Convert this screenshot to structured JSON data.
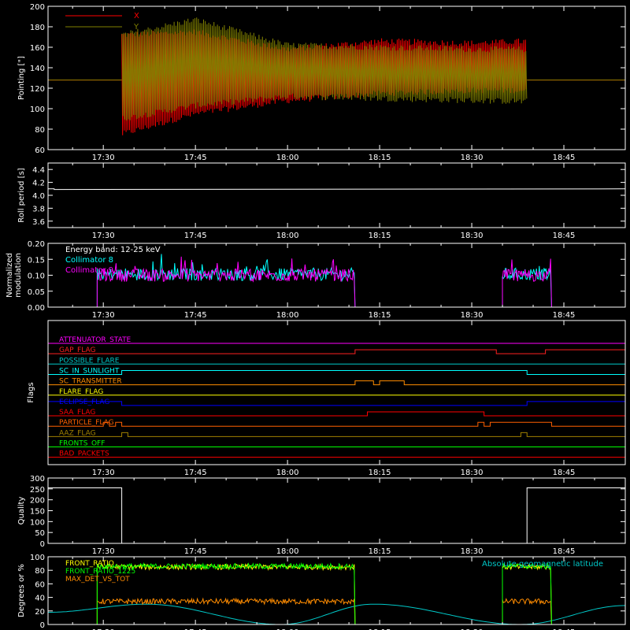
{
  "colors": {
    "background": "#000000",
    "axis": "#ffffff",
    "pointing_x": "#ff0000",
    "pointing_y": "#808000",
    "roll": "#ffffff",
    "collimator8": "#00ffff",
    "collimator9": "#ff00ff",
    "quality": "#ffffff",
    "front_ratio": "#ffff00",
    "front_ratio_1225": "#00ff00",
    "max_det": "#ff8c00",
    "geomag": "#00c8c8"
  },
  "time_ticks": [
    "17:30",
    "17:45",
    "18:00",
    "18:15",
    "18:30",
    "18:45"
  ],
  "chart_data": [
    {
      "type": "line",
      "ylabel": "Pointing [\"]",
      "ylim": [
        60,
        200
      ],
      "yticks": [
        "60",
        "80",
        "100",
        "120",
        "140",
        "160",
        "180",
        "200"
      ],
      "legend": [
        "X",
        "Y"
      ],
      "series": [
        {
          "name": "X",
          "segments": [
            {
              "time": "17:21",
              "value": 128
            },
            {
              "time": "17:33",
              "value": 128
            },
            {
              "time": "17:33",
              "min": 75,
              "max": 172
            },
            {
              "time": "17:45",
              "min": 95,
              "max": 175
            },
            {
              "time": "18:00",
              "min": 108,
              "max": 158
            },
            {
              "time": "18:15",
              "min": 115,
              "max": 166
            },
            {
              "time": "18:30",
              "min": 118,
              "max": 164
            },
            {
              "time": "18:39",
              "min": 118,
              "max": 166
            },
            {
              "time": "18:39",
              "value": 128
            },
            {
              "time": "18:55",
              "value": 128
            }
          ]
        },
        {
          "name": "Y",
          "segments": [
            {
              "time": "17:21",
              "value": 128
            },
            {
              "time": "17:33",
              "value": 128
            },
            {
              "time": "17:33",
              "min": 90,
              "max": 172
            },
            {
              "time": "17:45",
              "min": 103,
              "max": 187
            },
            {
              "time": "18:00",
              "min": 112,
              "max": 162
            },
            {
              "time": "18:15",
              "min": 110,
              "max": 160
            },
            {
              "time": "18:30",
              "min": 108,
              "max": 158
            },
            {
              "time": "18:39",
              "min": 107,
              "max": 158
            },
            {
              "time": "18:39",
              "value": 128
            },
            {
              "time": "18:55",
              "value": 128
            }
          ]
        }
      ]
    },
    {
      "type": "line",
      "ylabel": "Roll period [s]",
      "ylim": [
        3.5,
        4.5
      ],
      "yticks": [
        "3.6",
        "3.8",
        "4.0",
        "4.2",
        "4.4"
      ],
      "series": [
        {
          "name": "",
          "points": [
            {
              "time": "17:21",
              "value": 4.1
            },
            {
              "time": "17:22",
              "value": 4.1
            },
            {
              "time": "17:22",
              "value": 4.09
            },
            {
              "time": "18:55",
              "value": 4.1
            }
          ]
        }
      ]
    },
    {
      "type": "line",
      "ylabel_lines": [
        "Normalized",
        "modulation"
      ],
      "ylim": [
        0,
        0.2
      ],
      "yticks": [
        "0.00",
        "0.05",
        "0.10",
        "0.15",
        "0.20"
      ],
      "annotation": "Energy band: 12-25 keV",
      "legend": [
        "Collimator 8",
        "Collimator 9"
      ],
      "series": [
        {
          "name": "Collimator 8",
          "active_intervals": [
            [
              "17:29",
              "18:11"
            ],
            [
              "18:35",
              "18:43"
            ]
          ],
          "mean": 0.103,
          "spread": 0.02,
          "zero": 0.0
        },
        {
          "name": "Collimator 9",
          "active_intervals": [
            [
              "17:29",
              "18:11"
            ],
            [
              "18:35",
              "18:43"
            ]
          ],
          "mean": 0.1,
          "spread": 0.02,
          "zero": 0.0
        }
      ]
    },
    {
      "type": "flags",
      "ylabel": "Flags",
      "flags": [
        {
          "name": "ATTENUATOR_STATE",
          "color": "#ff00ff",
          "intervals": []
        },
        {
          "name": "GAP_FLAG",
          "color": "#ff2020",
          "intervals": [
            [
              "18:11",
              "18:34"
            ],
            [
              "18:42",
              "18:55"
            ]
          ]
        },
        {
          "name": "POSSIBLE_FLARE",
          "color": "#00c8c8",
          "intervals": []
        },
        {
          "name": "SC_IN_SUNLIGHT",
          "color": "#00ffff",
          "intervals": [
            [
              "17:33",
              "18:39"
            ]
          ]
        },
        {
          "name": "SC_TRANSMITTER",
          "color": "#ff8c00",
          "intervals": [
            [
              "18:11",
              "18:14"
            ],
            [
              "18:15",
              "18:19"
            ]
          ]
        },
        {
          "name": "FLARE_FLAG",
          "color": "#ffff00",
          "intervals": []
        },
        {
          "name": "ECLIPSE_FLAG",
          "color": "#0000ff",
          "intervals": [
            [
              "17:21",
              "17:33"
            ],
            [
              "18:39",
              "18:55"
            ]
          ]
        },
        {
          "name": "SAA_FLAG",
          "color": "#ff0000",
          "intervals": [
            [
              "18:13",
              "18:32"
            ]
          ]
        },
        {
          "name": "PARTICLE_FLAG",
          "color": "#ff6000",
          "intervals": [
            [
              "17:30",
              "17:31"
            ],
            [
              "17:32",
              "17:33"
            ],
            [
              "18:31",
              "18:32"
            ],
            [
              "18:33",
              "18:43"
            ]
          ]
        },
        {
          "name": "AAZ_FLAG",
          "color": "#a08000",
          "intervals": [
            [
              "17:33",
              "17:34"
            ],
            [
              "18:38",
              "18:39"
            ]
          ]
        },
        {
          "name": "FRONTS_OFF",
          "color": "#00ff00",
          "intervals": []
        },
        {
          "name": "BAD_PACKETS",
          "color": "#ff0000",
          "intervals": []
        }
      ]
    },
    {
      "type": "line",
      "ylabel": "Quality",
      "ylim": [
        0,
        300
      ],
      "yticks": [
        "0",
        "50",
        "100",
        "150",
        "200",
        "250",
        "300"
      ],
      "series": [
        {
          "name": "",
          "points": [
            {
              "time": "17:21",
              "value": 255
            },
            {
              "time": "17:33",
              "value": 255
            },
            {
              "time": "17:33",
              "value": 0
            },
            {
              "time": "18:39",
              "value": 0
            },
            {
              "time": "18:39",
              "value": 255
            },
            {
              "time": "18:55",
              "value": 255
            }
          ]
        }
      ]
    },
    {
      "type": "line",
      "ylabel": "Degrees or %",
      "ylim": [
        0,
        100
      ],
      "yticks": [
        "0",
        "20",
        "40",
        "60",
        "80",
        "100"
      ],
      "legend": [
        "FRONT_RATIO",
        "FRONT_RATIO_1225",
        "MAX_DET_VS_TOT"
      ],
      "annotation": "Absolute geomagnetic latitude",
      "series": [
        {
          "name": "FRONT_RATIO",
          "active_intervals": [
            [
              "17:29",
              "18:11"
            ],
            [
              "18:35",
              "18:43"
            ]
          ],
          "mean": 85,
          "spread": 4
        },
        {
          "name": "FRONT_RATIO_1225",
          "active_intervals": [
            [
              "17:29",
              "18:11"
            ],
            [
              "18:35",
              "18:43"
            ]
          ],
          "mean": 86,
          "spread": 4
        },
        {
          "name": "MAX_DET_VS_TOT",
          "active_intervals": [
            [
              "17:29",
              "18:11"
            ],
            [
              "18:35",
              "18:43"
            ]
          ],
          "mean": 34,
          "spread": 4
        },
        {
          "name": "Absolute geomagnetic latitude",
          "points": [
            {
              "time": "17:21",
              "value": 18
            },
            {
              "time": "17:37",
              "value": 30
            },
            {
              "time": "17:59",
              "value": 0
            },
            {
              "time": "18:14",
              "value": 30
            },
            {
              "time": "18:38",
              "value": 0
            },
            {
              "time": "18:55",
              "value": 28
            }
          ]
        }
      ]
    }
  ]
}
